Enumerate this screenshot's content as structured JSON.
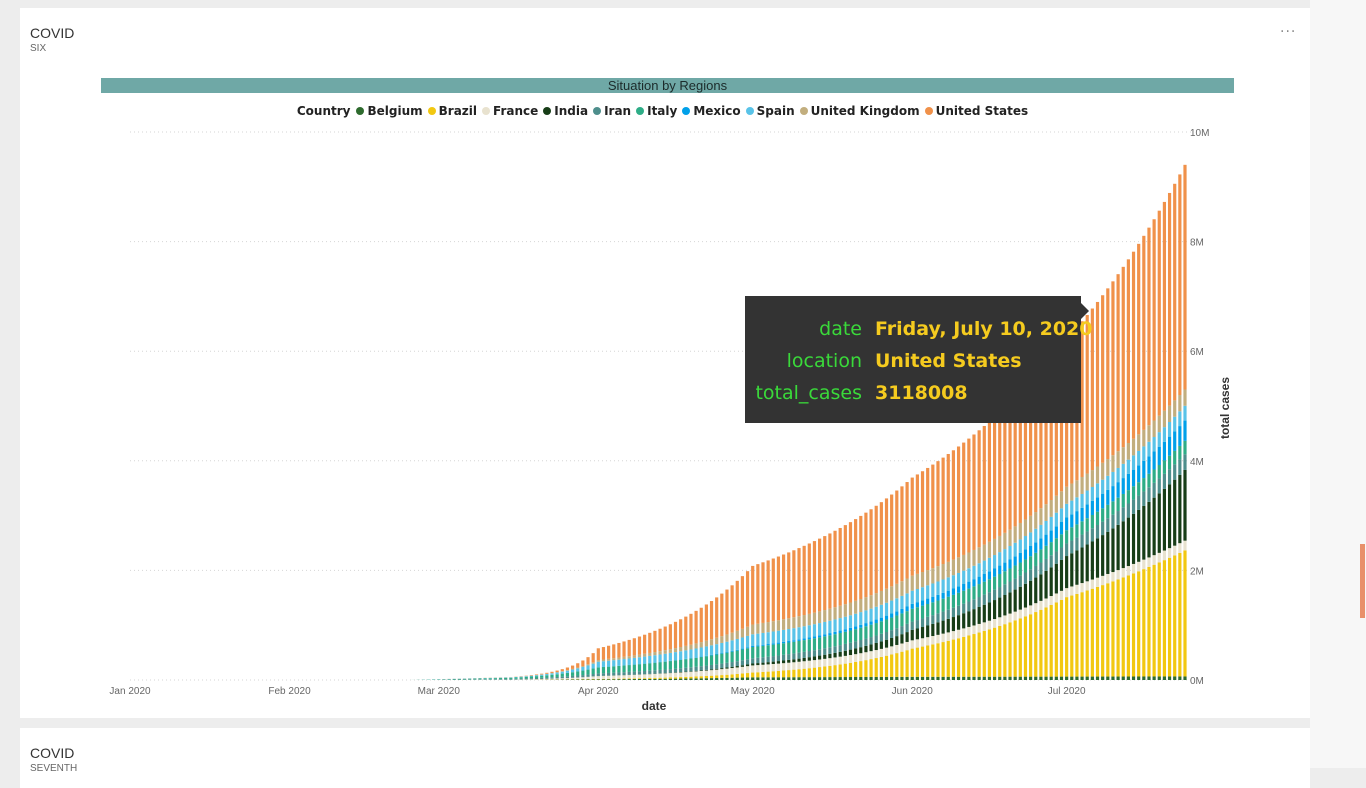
{
  "card": {
    "title": "COVID",
    "subtitle": "SIX",
    "more_icon": "ellipsis-icon"
  },
  "card2": {
    "title": "COVID",
    "subtitle": "SEVENTH"
  },
  "chart_data": {
    "type": "bar",
    "stacked": true,
    "title": "Situation by Regions",
    "legend_title": "Country",
    "legend_position": "top-center",
    "xlabel": "date",
    "ylabel": "total cases",
    "ylim": [
      0,
      10000000
    ],
    "y_ticks": [
      "0M",
      "2M",
      "4M",
      "6M",
      "8M",
      "10M"
    ],
    "x_ticks": [
      "Jan 2020",
      "Feb 2020",
      "Mar 2020",
      "Apr 2020",
      "May 2020",
      "Jun 2020",
      "Jul 2020"
    ],
    "x_range": [
      "2020-01-01",
      "2020-07-24"
    ],
    "grid": true,
    "series_order_bottom_to_top": [
      "Belgium",
      "Brazil",
      "France",
      "India",
      "Iran",
      "Italy",
      "Mexico",
      "Spain",
      "United Kingdom",
      "United States"
    ],
    "series": [
      {
        "name": "Belgium",
        "color": "#2e6b2e",
        "values": {
          "2020-03-15": 0,
          "2020-04-01": 13000,
          "2020-05-01": 49000,
          "2020-06-01": 58000,
          "2020-07-01": 62000,
          "2020-07-24": 65000
        }
      },
      {
        "name": "Brazil",
        "color": "#f2c811",
        "values": {
          "2020-03-15": 0,
          "2020-04-01": 6800,
          "2020-05-01": 87000,
          "2020-06-01": 515000,
          "2020-07-01": 1450000,
          "2020-07-24": 2300000
        }
      },
      {
        "name": "France",
        "color": "#e8e2cf",
        "values": {
          "2020-03-15": 5000,
          "2020-04-01": 52000,
          "2020-05-01": 130000,
          "2020-06-01": 151000,
          "2020-07-01": 165000,
          "2020-07-24": 178000
        }
      },
      {
        "name": "India",
        "color": "#173d17",
        "values": {
          "2020-03-15": 0,
          "2020-04-01": 1600,
          "2020-05-01": 35000,
          "2020-06-01": 190000,
          "2020-07-01": 585000,
          "2020-07-24": 1290000
        }
      },
      {
        "name": "Iran",
        "color": "#4e8e8c",
        "values": {
          "2020-03-15": 14000,
          "2020-04-01": 47000,
          "2020-05-01": 95000,
          "2020-06-01": 152000,
          "2020-07-01": 230000,
          "2020-07-24": 285000
        }
      },
      {
        "name": "Italy",
        "color": "#2ead87",
        "values": {
          "2020-03-15": 21000,
          "2020-04-01": 110000,
          "2020-05-01": 206000,
          "2020-06-01": 233000,
          "2020-07-01": 241000,
          "2020-07-24": 246000
        }
      },
      {
        "name": "Mexico",
        "color": "#00a0e9",
        "values": {
          "2020-03-15": 0,
          "2020-04-01": 1200,
          "2020-05-01": 19000,
          "2020-06-01": 90000,
          "2020-07-01": 232000,
          "2020-07-24": 370000
        }
      },
      {
        "name": "Spain",
        "color": "#59c3e8",
        "values": {
          "2020-03-15": 7800,
          "2020-04-01": 102000,
          "2020-05-01": 213000,
          "2020-06-01": 240000,
          "2020-07-01": 250000,
          "2020-07-24": 270000
        }
      },
      {
        "name": "United Kingdom",
        "color": "#c2ae7e",
        "values": {
          "2020-03-15": 1300,
          "2020-04-01": 30000,
          "2020-05-01": 178000,
          "2020-06-01": 275000,
          "2020-07-01": 312000,
          "2020-07-24": 297000
        }
      },
      {
        "name": "United States",
        "color": "#f0914a",
        "values": {
          "2020-03-15": 3000,
          "2020-04-01": 215000,
          "2020-05-01": 1070000,
          "2020-06-01": 1790000,
          "2020-07-01": 2690000,
          "2020-07-24": 4100000
        }
      }
    ],
    "tooltip": {
      "rows": [
        {
          "key": "date",
          "value": "Friday, July 10, 2020"
        },
        {
          "key": "location",
          "value": "United States"
        },
        {
          "key": "total_cases",
          "value": "3118008"
        }
      ]
    }
  }
}
